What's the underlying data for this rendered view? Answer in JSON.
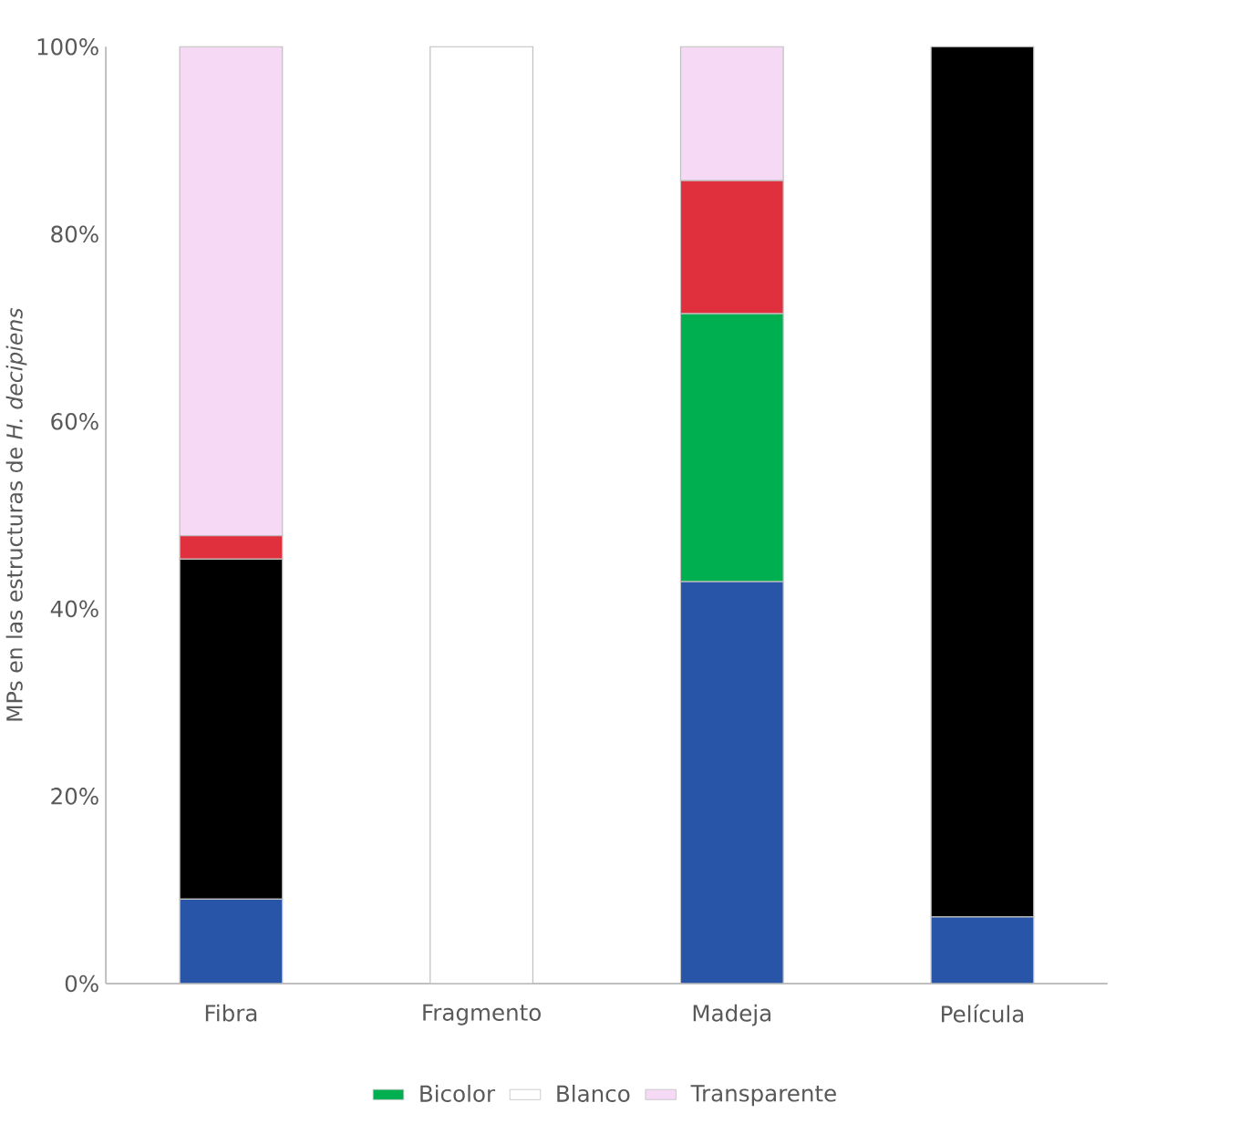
{
  "chart_data": {
    "type": "bar",
    "stacked": true,
    "ylabel": "MPs en las estructuras de *H. decipiens*",
    "categories": [
      "Fibra",
      "Fragmento",
      "Madeja",
      "Película"
    ],
    "series": [
      {
        "color": "#2855a8",
        "values": [
          9,
          0,
          42.9,
          7.1
        ]
      },
      {
        "color": "#000000",
        "values": [
          36.3,
          0,
          0,
          92.9
        ]
      },
      {
        "name": "Bicolor",
        "color": "#00b050",
        "values": [
          0,
          0,
          28.6,
          0
        ]
      },
      {
        "color": "#e0303e",
        "values": [
          2.5,
          0,
          14.2,
          0
        ]
      },
      {
        "name": "Blanco",
        "color": "#ffffff",
        "values": [
          0,
          100,
          0,
          0
        ]
      },
      {
        "name": "Transparente",
        "color": "#f5d9f5",
        "values": [
          52.2,
          0,
          14.3,
          0
        ]
      }
    ],
    "ylim": [
      0,
      100
    ],
    "yticks": [
      {
        "value": 0,
        "label": "0%"
      },
      {
        "value": 20,
        "label": "20%"
      },
      {
        "value": 40,
        "label": "40%"
      },
      {
        "value": 60,
        "label": "60%"
      },
      {
        "value": 80,
        "label": "80%"
      },
      {
        "value": 100,
        "label": "100%"
      }
    ],
    "legend": "bottom",
    "grid": false
  }
}
